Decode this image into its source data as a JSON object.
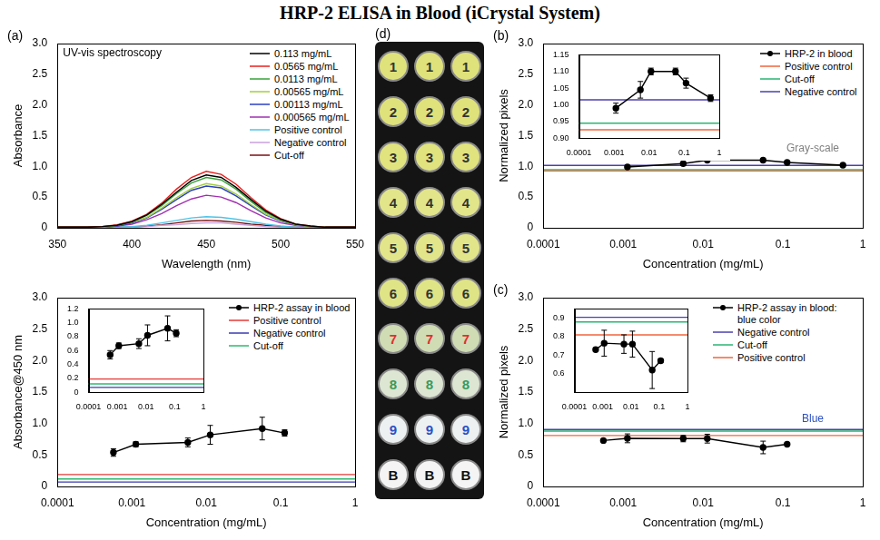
{
  "title": "HRP-2 ELISA in Blood (iCrystal System)",
  "chart_data": [
    {
      "label": "(a)",
      "type": "line",
      "annotation": {
        "text": "UV-vis spectroscopy",
        "color": "#000000"
      },
      "x_label": "Wavelength (nm)",
      "y_label": "Absorbance",
      "x": [
        350,
        360,
        370,
        380,
        390,
        400,
        410,
        420,
        430,
        440,
        450,
        460,
        470,
        480,
        490,
        500,
        510,
        520,
        530,
        540,
        550
      ],
      "series": [
        {
          "name": "0.113 mg/mL",
          "color": "#000000",
          "values": [
            0.01,
            0.01,
            0.01,
            0.02,
            0.04,
            0.1,
            0.21,
            0.38,
            0.58,
            0.77,
            0.86,
            0.82,
            0.66,
            0.46,
            0.27,
            0.14,
            0.06,
            0.03,
            0.01,
            0.01,
            0.01
          ]
        },
        {
          "name": "0.0565 mg/mL",
          "color": "#e8201e",
          "values": [
            0.01,
            0.01,
            0.01,
            0.02,
            0.05,
            0.11,
            0.22,
            0.4,
            0.63,
            0.82,
            0.92,
            0.87,
            0.71,
            0.49,
            0.29,
            0.15,
            0.06,
            0.03,
            0.01,
            0.01,
            0.01
          ]
        },
        {
          "name": "0.0113 mg/mL",
          "color": "#3aa33a",
          "values": [
            0.01,
            0.01,
            0.01,
            0.02,
            0.04,
            0.1,
            0.2,
            0.36,
            0.56,
            0.73,
            0.82,
            0.78,
            0.63,
            0.43,
            0.25,
            0.13,
            0.06,
            0.02,
            0.01,
            0.01,
            0.01
          ]
        },
        {
          "name": "0.00565 mg/mL",
          "color": "#a2cf3c",
          "values": [
            0.01,
            0.01,
            0.01,
            0.01,
            0.04,
            0.09,
            0.17,
            0.32,
            0.49,
            0.64,
            0.72,
            0.68,
            0.55,
            0.38,
            0.22,
            0.12,
            0.05,
            0.02,
            0.01,
            0.01,
            0.01
          ]
        },
        {
          "name": "0.00113 mg/mL",
          "color": "#2a3fc4",
          "values": [
            0.01,
            0.01,
            0.01,
            0.01,
            0.03,
            0.08,
            0.16,
            0.3,
            0.46,
            0.61,
            0.68,
            0.65,
            0.52,
            0.36,
            0.21,
            0.11,
            0.05,
            0.02,
            0.01,
            0.01,
            0.01
          ]
        },
        {
          "name": "0.000565 mg/mL",
          "color": "#a030b0",
          "values": [
            0.01,
            0.01,
            0.01,
            0.01,
            0.03,
            0.06,
            0.13,
            0.23,
            0.36,
            0.47,
            0.53,
            0.5,
            0.41,
            0.28,
            0.16,
            0.08,
            0.04,
            0.02,
            0.01,
            0.01,
            0.01
          ]
        },
        {
          "name": "Positive control",
          "color": "#4fc3e6",
          "values": [
            0.01,
            0.01,
            0.01,
            0.01,
            0.01,
            0.02,
            0.04,
            0.08,
            0.12,
            0.16,
            0.18,
            0.17,
            0.14,
            0.1,
            0.06,
            0.03,
            0.01,
            0.01,
            0.01,
            0.01,
            0.01
          ]
        },
        {
          "name": "Negative control",
          "color": "#c9a0dc",
          "values": [
            0.01,
            0.01,
            0.01,
            0.01,
            0.01,
            0.01,
            0.02,
            0.04,
            0.05,
            0.07,
            0.08,
            0.08,
            0.06,
            0.04,
            0.02,
            0.01,
            0.01,
            0.01,
            0.01,
            0.01,
            0.01
          ]
        },
        {
          "name": "Cut-off",
          "color": "#7a1010",
          "values": [
            0.01,
            0.01,
            0.01,
            0.01,
            0.01,
            0.01,
            0.03,
            0.05,
            0.08,
            0.11,
            0.12,
            0.11,
            0.09,
            0.06,
            0.04,
            0.02,
            0.01,
            0.01,
            0.01,
            0.01,
            0.01
          ]
        }
      ],
      "xlim": [
        350,
        550
      ],
      "xticks": [
        350,
        400,
        450,
        500,
        550
      ],
      "ylim": [
        0,
        3
      ],
      "yticks": [
        0,
        0.5,
        {
          "value": 1,
          "label": "1.0"
        },
        1.5,
        {
          "value": 2,
          "label": "2.0"
        },
        2.5,
        {
          "value": 3,
          "label": "3.0"
        }
      ],
      "grid": false,
      "legend": "top-right"
    },
    {
      "type": "line",
      "log": "x",
      "x_label": "Concentration (mg/mL)",
      "y_label": "Absorbance@450 nm",
      "series": [
        {
          "name": "HRP-2 assay in blood",
          "color": "#000000",
          "marker": "circle",
          "x": [
            0.000565,
            0.00113,
            0.00565,
            0.0113,
            0.0565,
            0.113
          ],
          "values": [
            0.54,
            0.67,
            0.7,
            0.82,
            0.92,
            0.85
          ],
          "errors": [
            0.06,
            0.04,
            0.07,
            0.15,
            0.18,
            0.05
          ]
        },
        {
          "name": "Positive control",
          "color": "#e53935",
          "type": "hline",
          "values": [
            0.19
          ]
        },
        {
          "name": "Negative control",
          "color": "#3b3bb0",
          "type": "hline",
          "values": [
            0.07
          ]
        },
        {
          "name": "Cut-off",
          "color": "#2eb86e",
          "type": "hline",
          "values": [
            0.12
          ]
        }
      ],
      "xlim": [
        0.0001,
        1
      ],
      "xticks": [
        0.0001,
        0.001,
        0.01,
        0.1,
        1
      ],
      "ylim": [
        0,
        3
      ],
      "yticks": [
        0,
        0.5,
        {
          "value": 1,
          "label": "1.0"
        },
        1.5,
        {
          "value": 2,
          "label": "2.0"
        },
        2.5,
        {
          "value": 3,
          "label": "3.0"
        }
      ],
      "inset": {
        "xlim": [
          0.0001,
          1
        ],
        "xticks": [
          0.0001,
          0.001,
          0.01,
          0.1,
          1
        ],
        "ylim": [
          0,
          1.2
        ],
        "yticks": [
          0,
          0.2,
          0.4,
          0.6,
          0.8,
          {
            "value": 1,
            "label": "1.0"
          },
          1.2
        ]
      },
      "grid": false,
      "legend": "top-right"
    },
    {
      "label": "(b)",
      "type": "line",
      "log": "x",
      "annotation": {
        "text": "Gray-scale",
        "color": "#808080"
      },
      "x_label": "Concentration (mg/mL)",
      "y_label": "Normalized pixels",
      "series": [
        {
          "name": "HRP-2 in blood",
          "color": "#000000",
          "marker": "circle",
          "x": [
            0.00113,
            0.00565,
            0.0113,
            0.0565,
            0.113,
            0.565
          ],
          "values": [
            0.99,
            1.045,
            1.1,
            1.1,
            1.065,
            1.02
          ],
          "errors": [
            0.015,
            0.025,
            0.01,
            0.01,
            0.015,
            0.01
          ]
        },
        {
          "name": "Positive control",
          "color": "#f0643c",
          "type": "hline",
          "values": [
            0.925
          ]
        },
        {
          "name": "Cut-off",
          "color": "#2ab573",
          "type": "hline",
          "values": [
            0.945
          ]
        },
        {
          "name": "Negative control",
          "color": "#4b3fae",
          "type": "hline",
          "values": [
            1.015
          ]
        }
      ],
      "xlim": [
        0.0001,
        1
      ],
      "xticks": [
        0.0001,
        0.001,
        0.01,
        0.1,
        1
      ],
      "ylim": [
        0,
        3
      ],
      "yticks": [
        0,
        0.5,
        {
          "value": 1,
          "label": "1.0"
        },
        1.5,
        {
          "value": 2,
          "label": "2.0"
        },
        2.5,
        {
          "value": 3,
          "label": "3.0"
        }
      ],
      "inset": {
        "xlim": [
          0.0001,
          1
        ],
        "xticks": [
          0.0001,
          0.001,
          0.01,
          0.1,
          1
        ],
        "ylim": [
          0.9,
          1.15
        ],
        "yticks": [
          {
            "value": 0.9,
            "label": "0.90"
          },
          0.95,
          {
            "value": 1,
            "label": "1.00"
          },
          1.05,
          {
            "value": 1.1,
            "label": "1.10"
          },
          1.15
        ]
      },
      "grid": false,
      "legend": "top-right"
    },
    {
      "label": "(c)",
      "type": "line",
      "log": "x",
      "annotation": {
        "text": "Blue",
        "color": "#2b4fc4"
      },
      "x_label": "Concentration (mg/mL)",
      "y_label": "Normalized pixels",
      "series": [
        {
          "name": "HRP-2 assay in blood: blue color",
          "color": "#000000",
          "marker": "circle",
          "x": [
            0.000565,
            0.00113,
            0.00565,
            0.0113,
            0.0565,
            0.113
          ],
          "values": [
            0.73,
            0.765,
            0.76,
            0.76,
            0.62,
            0.67
          ],
          "errors": [
            0.01,
            0.07,
            0.05,
            0.07,
            0.1,
            0.01
          ]
        },
        {
          "name": "Negative control",
          "color": "#4b3fae",
          "type": "hline",
          "values": [
            0.905
          ]
        },
        {
          "name": "Cut-off",
          "color": "#2ab573",
          "type": "hline",
          "values": [
            0.88
          ]
        },
        {
          "name": "Positive control",
          "color": "#f0643c",
          "type": "hline",
          "values": [
            0.81
          ]
        }
      ],
      "xlim": [
        0.0001,
        1
      ],
      "xticks": [
        0.0001,
        0.001,
        0.01,
        0.1,
        1
      ],
      "ylim": [
        0,
        3
      ],
      "yticks": [
        0,
        0.5,
        {
          "value": 1,
          "label": "1.0"
        },
        1.5,
        {
          "value": 2,
          "label": "2.0"
        },
        2.5,
        {
          "value": 3,
          "label": "3.0"
        }
      ],
      "inset": {
        "xlim": [
          0.0001,
          1
        ],
        "xticks": [
          0.0001,
          0.001,
          0.01,
          0.1,
          1
        ],
        "ylim": [
          0.5,
          0.95
        ],
        "yticks": [
          0.6,
          0.7,
          0.8,
          0.9
        ]
      },
      "grid": false,
      "legend": "top-right"
    }
  ],
  "plate": {
    "label": "(d)",
    "rows": [
      {
        "wells": [
          "1",
          "1",
          "1"
        ],
        "color": "#dfe27a",
        "label_color": "#333333"
      },
      {
        "wells": [
          "2",
          "2",
          "2"
        ],
        "color": "#dfe27a",
        "label_color": "#333333"
      },
      {
        "wells": [
          "3",
          "3",
          "3"
        ],
        "color": "#e0e37e",
        "label_color": "#333333"
      },
      {
        "wells": [
          "4",
          "4",
          "4"
        ],
        "color": "#e2e58a",
        "label_color": "#333333"
      },
      {
        "wells": [
          "5",
          "5",
          "5"
        ],
        "color": "#e2e58a",
        "label_color": "#333333"
      },
      {
        "wells": [
          "6",
          "6",
          "6"
        ],
        "color": "#dfe486",
        "label_color": "#333333"
      },
      {
        "wells": [
          "7",
          "7",
          "7"
        ],
        "color": "#cfdcb4",
        "label_color": "#e03030"
      },
      {
        "wells": [
          "8",
          "8",
          "8"
        ],
        "color": "#dde6d2",
        "label_color": "#3a9a5a"
      },
      {
        "wells": [
          "9",
          "9",
          "9"
        ],
        "color": "#eef1f1",
        "label_color": "#2b4fc4"
      },
      {
        "wells": [
          "B",
          "B",
          "B"
        ],
        "color": "#f4f4f4",
        "label_color": "#111111"
      }
    ]
  }
}
